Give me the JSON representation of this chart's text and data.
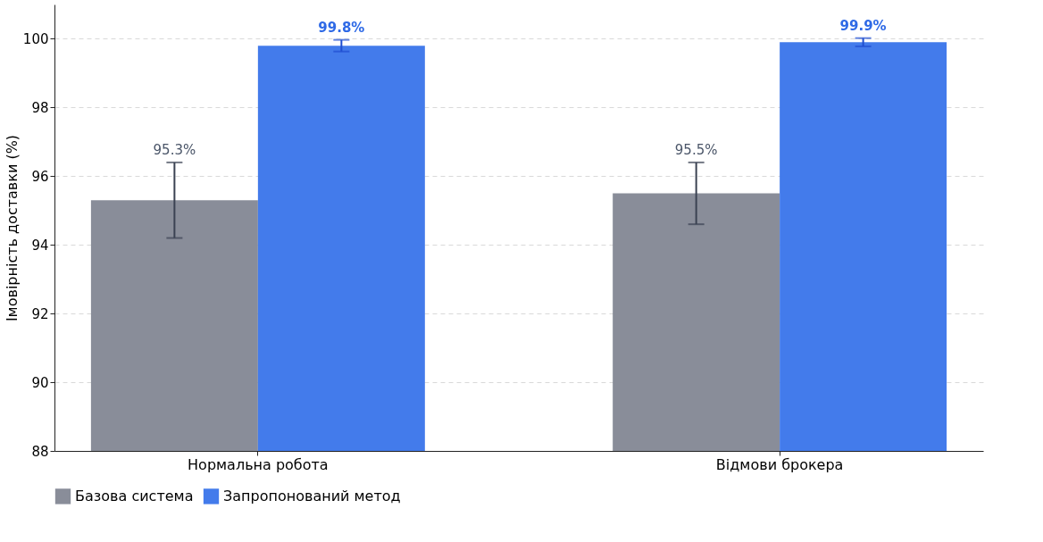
{
  "chart_data": {
    "type": "bar",
    "ylabel": "Імовірність доставки (%)",
    "categories": [
      "Нормальна робота",
      "Відмови брокера"
    ],
    "series": [
      {
        "name": "Базова система",
        "color": "#878b97",
        "values": [
          95.3,
          95.5
        ],
        "errors": [
          1.1,
          0.9
        ],
        "value_labels": [
          "95.3%",
          "95.5%"
        ]
      },
      {
        "name": "Запропонований метод",
        "color": "#3f78eb",
        "values": [
          99.8,
          99.9
        ],
        "errors": [
          0.17,
          0.12
        ],
        "value_labels": [
          "99.8%",
          "99.9%"
        ]
      }
    ],
    "ylim": [
      88,
      101
    ],
    "yticks": [
      88,
      90,
      92,
      94,
      96,
      98,
      100
    ],
    "grid": "y",
    "legend": "bottom"
  }
}
